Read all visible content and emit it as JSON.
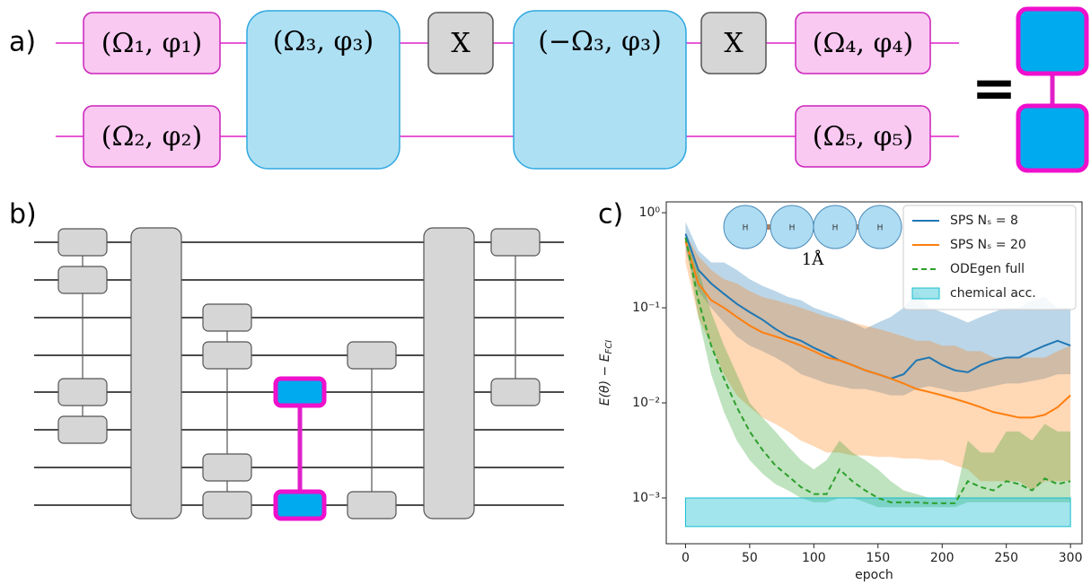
{
  "panel_a": {
    "label": "a)",
    "gates": [
      "(Ω₁, φ₁)",
      "(Ω₂, φ₂)",
      "(Ω₃, φ₃)",
      "X",
      "(−Ω₃, φ₃)",
      "X",
      "(Ω₄, φ₄)",
      "(Ω₅, φ₅)"
    ],
    "equals": "="
  },
  "panel_b": {
    "label": "b)"
  },
  "chart_data": {
    "type": "line",
    "panel_label": "c)",
    "xlabel": "epoch",
    "ylabel": [
      "E(θ) − E",
      "FCI"
    ],
    "inset_atoms": [
      "H",
      "H",
      "H",
      "H"
    ],
    "inset_label": "1Å",
    "log_y": true,
    "legend": "upper right",
    "xlim": [
      -15,
      309
    ],
    "ylim": [
      0.00033,
      1.3
    ],
    "xticks": [
      0,
      50,
      100,
      150,
      200,
      250,
      300
    ],
    "yticks": [
      {
        "value": 1,
        "label": "10⁰"
      },
      {
        "value": 0.1,
        "label": "10⁻¹"
      },
      {
        "value": 0.01,
        "label": "10⁻²"
      },
      {
        "value": 0.001,
        "label": "10⁻³"
      }
    ],
    "x": [
      0,
      10,
      20,
      30,
      40,
      50,
      60,
      70,
      80,
      90,
      100,
      110,
      120,
      130,
      140,
      150,
      160,
      170,
      180,
      190,
      200,
      210,
      220,
      230,
      240,
      250,
      260,
      270,
      280,
      290,
      300
    ],
    "series": [
      {
        "name": "SPS Nₛ = 8",
        "color": "#1f77b4",
        "values": [
          0.6,
          0.25,
          0.18,
          0.14,
          0.11,
          0.09,
          0.075,
          0.06,
          0.05,
          0.045,
          0.038,
          0.033,
          0.028,
          0.025,
          0.022,
          0.02,
          0.018,
          0.02,
          0.028,
          0.03,
          0.025,
          0.022,
          0.021,
          0.025,
          0.028,
          0.03,
          0.03,
          0.035,
          0.04,
          0.045,
          0.04
        ],
        "upper": [
          0.8,
          0.4,
          0.3,
          0.3,
          0.25,
          0.2,
          0.17,
          0.15,
          0.13,
          0.12,
          0.1,
          0.09,
          0.08,
          0.07,
          0.06,
          0.07,
          0.08,
          0.1,
          0.15,
          0.1,
          0.09,
          0.08,
          0.07,
          0.08,
          0.09,
          0.1,
          0.1,
          0.12,
          0.13,
          0.1,
          0.1
        ],
        "lower": [
          0.4,
          0.15,
          0.1,
          0.07,
          0.05,
          0.04,
          0.035,
          0.03,
          0.025,
          0.02,
          0.018,
          0.016,
          0.015,
          0.014,
          0.014,
          0.013,
          0.012,
          0.012,
          0.014,
          0.015,
          0.014,
          0.013,
          0.013,
          0.014,
          0.015,
          0.016,
          0.016,
          0.017,
          0.018,
          0.02,
          0.02
        ]
      },
      {
        "name": "SPS Nₛ = 20",
        "color": "#ff7f0e",
        "values": [
          0.5,
          0.18,
          0.12,
          0.1,
          0.08,
          0.065,
          0.055,
          0.05,
          0.045,
          0.04,
          0.035,
          0.03,
          0.028,
          0.025,
          0.022,
          0.02,
          0.018,
          0.016,
          0.014,
          0.013,
          0.012,
          0.011,
          0.01,
          0.009,
          0.008,
          0.0075,
          0.007,
          0.007,
          0.0075,
          0.009,
          0.012
        ],
        "upper": [
          0.6,
          0.35,
          0.25,
          0.2,
          0.18,
          0.15,
          0.13,
          0.12,
          0.11,
          0.1,
          0.09,
          0.08,
          0.075,
          0.07,
          0.065,
          0.06,
          0.055,
          0.05,
          0.045,
          0.045,
          0.04,
          0.04,
          0.035,
          0.035,
          0.03,
          0.03,
          0.03,
          0.03,
          0.03,
          0.035,
          0.04
        ],
        "lower": [
          0.3,
          0.08,
          0.04,
          0.02,
          0.012,
          0.009,
          0.007,
          0.006,
          0.005,
          0.004,
          0.0035,
          0.003,
          0.003,
          0.0028,
          0.0028,
          0.0027,
          0.0027,
          0.0026,
          0.0026,
          0.0025,
          0.0025,
          0.0022,
          0.002,
          0.0015,
          0.0015,
          0.0015,
          0.0015,
          0.0012,
          0.0015,
          0.0015,
          0.0015
        ]
      },
      {
        "name": "ODEgen full",
        "color": "#2ca02c",
        "dashed": true,
        "values": [
          0.55,
          0.12,
          0.04,
          0.018,
          0.009,
          0.005,
          0.0032,
          0.0022,
          0.0017,
          0.0013,
          0.0011,
          0.0011,
          0.002,
          0.0015,
          0.0012,
          0.001,
          0.0009,
          0.0009,
          0.0009,
          0.00088,
          0.00088,
          0.00088,
          0.0015,
          0.0013,
          0.0012,
          0.0015,
          0.0014,
          0.0012,
          0.0016,
          0.0014,
          0.0015
        ],
        "upper": [
          0.6,
          0.25,
          0.09,
          0.04,
          0.02,
          0.01,
          0.007,
          0.005,
          0.0035,
          0.0025,
          0.002,
          0.0025,
          0.004,
          0.003,
          0.0025,
          0.002,
          0.0015,
          0.0012,
          0.0011,
          0.001,
          0.001,
          0.001,
          0.004,
          0.003,
          0.003,
          0.005,
          0.005,
          0.004,
          0.006,
          0.005,
          0.005
        ],
        "lower": [
          0.5,
          0.08,
          0.02,
          0.008,
          0.004,
          0.0025,
          0.0018,
          0.0014,
          0.0012,
          0.001,
          0.0009,
          0.0009,
          0.001,
          0.001,
          0.0009,
          0.0008,
          0.0008,
          0.0008,
          0.0008,
          0.0008,
          0.0008,
          0.0008,
          0.0009,
          0.0009,
          0.0009,
          0.0009,
          0.0009,
          0.0009,
          0.0009,
          0.0009,
          0.0009
        ]
      },
      {
        "name": "chemical acc.",
        "color": "#17becf",
        "x": [
          0,
          300
        ],
        "upper": [
          0.001,
          0.001
        ],
        "lower": [
          0.0005,
          0.0005
        ]
      }
    ]
  }
}
